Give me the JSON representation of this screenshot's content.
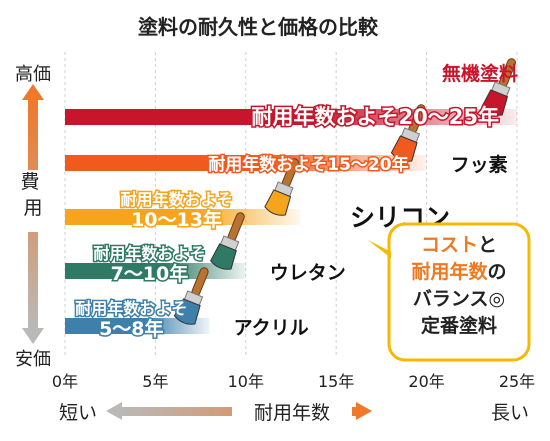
{
  "chart_data": {
    "type": "bar",
    "orientation": "horizontal",
    "title": "塗料の耐久性と価格の比較",
    "xlabel": "耐用年数",
    "xlabel_short": "短い",
    "xlabel_long": "長い",
    "ylabel": "費用",
    "ylabel_top": "高価",
    "ylabel_bottom": "安価",
    "xlim": [
      0,
      25
    ],
    "x_ticks": [
      "0年",
      "5年",
      "10年",
      "15年",
      "20年",
      "25年"
    ],
    "grid": true,
    "categories": [
      "無機塗料",
      "フッ素",
      "シリコン",
      "ウレタン",
      "アクリル"
    ],
    "series": [
      {
        "values": [
          20,
          15,
          10,
          7,
          5
        ],
        "ranges": [
          [
            20,
            25
          ],
          [
            15,
            20
          ],
          [
            10,
            13
          ],
          [
            7,
            10
          ],
          [
            5,
            8
          ]
        ],
        "labels": [
          "耐用年数およそ20〜25年",
          "耐用年数およそ15〜20年",
          "耐用年数およそ10〜13年",
          "耐用年数およそ7〜10年",
          "耐用年数およそ5〜8年"
        ],
        "colors": [
          "#c7162b",
          "#f05a1e",
          "#f5a51c",
          "#2f7a64",
          "#3f80aa"
        ]
      }
    ],
    "annotations": [
      {
        "line1_a": "コスト",
        "line1_b": "と",
        "line2_a": "耐用年数",
        "line2_b": "の",
        "line3": "バランス◎",
        "line4": "定番塗料"
      }
    ],
    "colors": {
      "accent_red": "#c7162b",
      "accent_orange": "#f0781e",
      "callout_border": "#f7b800",
      "axis_gray": "#888888"
    },
    "icons": [
      "paint-brush-icon",
      "double-arrow-icon"
    ]
  }
}
